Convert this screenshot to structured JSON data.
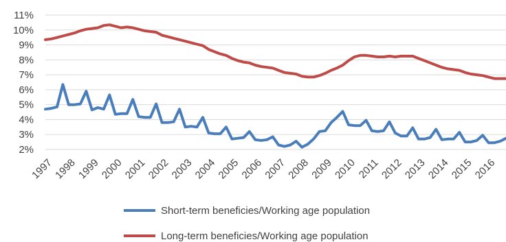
{
  "chart_data": {
    "type": "line",
    "title": "",
    "xlabel": "",
    "ylabel": "",
    "ylim": [
      2,
      11
    ],
    "yticks": [
      "11%",
      "10%",
      "9%",
      "8%",
      "7%",
      "6%",
      "5%",
      "4%",
      "3%",
      "2%"
    ],
    "xticks": [
      "1997",
      "1998",
      "1999",
      "2000",
      "2001",
      "2002",
      "2003",
      "2004",
      "2005",
      "2006",
      "2007",
      "2008",
      "2009",
      "2010",
      "2011",
      "2012",
      "2013",
      "2014",
      "2015",
      "2016"
    ],
    "grid": "horizontal",
    "legend_position": "bottom",
    "colors": {
      "short": "#4a7ebb",
      "long": "#be4b48"
    },
    "series": [
      {
        "name": "Short-term beneficies/Working age population",
        "color": "#4a7ebb",
        "x": [
          1997.0,
          1997.25,
          1997.5,
          1997.75,
          1998.0,
          1998.25,
          1998.5,
          1998.75,
          1999.0,
          1999.25,
          1999.5,
          1999.75,
          2000.0,
          2000.25,
          2000.5,
          2000.75,
          2001.0,
          2001.25,
          2001.5,
          2001.75,
          2002.0,
          2002.25,
          2002.5,
          2002.75,
          2003.0,
          2003.25,
          2003.5,
          2003.75,
          2004.0,
          2004.25,
          2004.5,
          2004.75,
          2005.0,
          2005.25,
          2005.5,
          2005.75,
          2006.0,
          2006.25,
          2006.5,
          2006.75,
          2007.0,
          2007.25,
          2007.5,
          2007.75,
          2008.0,
          2008.25,
          2008.5,
          2008.75,
          2009.0,
          2009.25,
          2009.5,
          2009.75,
          2010.0,
          2010.25,
          2010.5,
          2010.75,
          2011.0,
          2011.25,
          2011.5,
          2011.75,
          2012.0,
          2012.25,
          2012.5,
          2012.75,
          2013.0,
          2013.25,
          2013.5,
          2013.75,
          2014.0,
          2014.25,
          2014.5,
          2014.75,
          2015.0,
          2015.25,
          2015.5,
          2015.75,
          2016.0,
          2016.25,
          2016.5,
          2016.75
        ],
        "values": [
          4.7,
          4.75,
          4.85,
          6.35,
          5.0,
          5.0,
          5.05,
          5.9,
          4.65,
          4.8,
          4.7,
          5.65,
          4.35,
          4.4,
          4.4,
          5.35,
          4.2,
          4.15,
          4.15,
          5.05,
          3.8,
          3.8,
          3.85,
          4.7,
          3.5,
          3.55,
          3.5,
          4.15,
          3.1,
          3.05,
          3.05,
          3.5,
          2.7,
          2.75,
          2.8,
          3.2,
          2.65,
          2.6,
          2.65,
          2.85,
          2.3,
          2.2,
          2.3,
          2.55,
          2.15,
          2.35,
          2.7,
          3.2,
          3.25,
          3.8,
          4.15,
          4.55,
          3.65,
          3.6,
          3.6,
          3.95,
          3.25,
          3.2,
          3.25,
          3.85,
          3.1,
          2.9,
          2.9,
          3.45,
          2.7,
          2.7,
          2.8,
          3.35,
          2.65,
          2.7,
          2.7,
          3.15,
          2.5,
          2.5,
          2.6,
          2.95,
          2.45,
          2.45,
          2.55,
          2.75
        ]
      },
      {
        "name": "Long-term beneficies/Working age population",
        "color": "#be4b48",
        "x": [
          1997.0,
          1997.25,
          1997.5,
          1997.75,
          1998.0,
          1998.25,
          1998.5,
          1998.75,
          1999.0,
          1999.25,
          1999.5,
          1999.75,
          2000.0,
          2000.25,
          2000.5,
          2000.75,
          2001.0,
          2001.25,
          2001.5,
          2001.75,
          2002.0,
          2002.25,
          2002.5,
          2002.75,
          2003.0,
          2003.25,
          2003.5,
          2003.75,
          2004.0,
          2004.25,
          2004.5,
          2004.75,
          2005.0,
          2005.25,
          2005.5,
          2005.75,
          2006.0,
          2006.25,
          2006.5,
          2006.75,
          2007.0,
          2007.25,
          2007.5,
          2007.75,
          2008.0,
          2008.25,
          2008.5,
          2008.75,
          2009.0,
          2009.25,
          2009.5,
          2009.75,
          2010.0,
          2010.25,
          2010.5,
          2010.75,
          2011.0,
          2011.25,
          2011.5,
          2011.75,
          2012.0,
          2012.25,
          2012.5,
          2012.75,
          2013.0,
          2013.25,
          2013.5,
          2013.75,
          2014.0,
          2014.25,
          2014.5,
          2014.75,
          2015.0,
          2015.25,
          2015.5,
          2015.75,
          2016.0,
          2016.25,
          2016.5,
          2016.75
        ],
        "values": [
          9.35,
          9.4,
          9.5,
          9.6,
          9.7,
          9.8,
          9.95,
          10.05,
          10.1,
          10.15,
          10.3,
          10.35,
          10.25,
          10.15,
          10.2,
          10.15,
          10.05,
          9.95,
          9.9,
          9.85,
          9.65,
          9.55,
          9.45,
          9.35,
          9.25,
          9.15,
          9.05,
          8.95,
          8.7,
          8.55,
          8.4,
          8.3,
          8.1,
          7.95,
          7.85,
          7.8,
          7.65,
          7.55,
          7.5,
          7.45,
          7.3,
          7.15,
          7.1,
          7.05,
          6.9,
          6.85,
          6.85,
          6.95,
          7.1,
          7.3,
          7.45,
          7.65,
          7.95,
          8.2,
          8.3,
          8.3,
          8.25,
          8.2,
          8.2,
          8.25,
          8.2,
          8.25,
          8.25,
          8.25,
          8.1,
          7.95,
          7.8,
          7.65,
          7.5,
          7.4,
          7.35,
          7.3,
          7.15,
          7.05,
          7.0,
          6.95,
          6.85,
          6.75,
          6.75,
          6.75
        ]
      }
    ]
  }
}
